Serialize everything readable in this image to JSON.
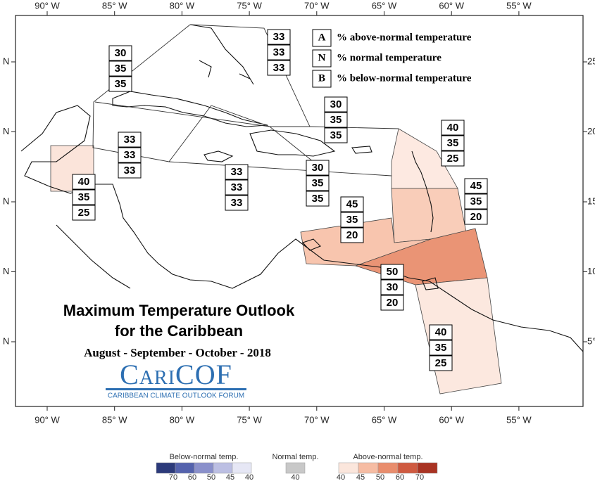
{
  "title_line1": "Maximum Temperature Outlook",
  "title_line2": "for the Caribbean",
  "season": "August - September - October - 2018",
  "logo": "CariCOF",
  "logo_sub": "CARIBBEAN CLIMATE OUTLOOK FORUM",
  "lon_labels": [
    "90° W",
    "85° W",
    "80° W",
    "75° W",
    "70° W",
    "65° W",
    "60° W",
    "55° W"
  ],
  "lat_labels_left": [
    "N",
    "N",
    "N",
    "N",
    "N"
  ],
  "lat_labels_right": [
    "25",
    "20",
    "15",
    "10",
    "5°"
  ],
  "legend": [
    {
      "key": "A",
      "text": "% above-normal temperature"
    },
    {
      "key": "N",
      "text": "% normal temperature"
    },
    {
      "key": "B",
      "text": "% below-normal temperature"
    }
  ],
  "regions": [
    {
      "probs": [
        33,
        33,
        33
      ]
    },
    {
      "probs": [
        30,
        35,
        35
      ]
    },
    {
      "probs": [
        40,
        35,
        25
      ],
      "color": "#fbe4da"
    },
    {
      "probs": [
        33,
        33,
        33
      ]
    },
    {
      "probs": [
        33,
        33,
        33
      ]
    },
    {
      "probs": [
        30,
        35,
        35
      ]
    },
    {
      "probs": [
        30,
        35,
        35
      ]
    },
    {
      "probs": [
        40,
        35,
        25
      ],
      "color": "#fde9e1"
    },
    {
      "probs": [
        45,
        35,
        20
      ],
      "color": "#f9cdb9"
    },
    {
      "probs": [
        45,
        35,
        20
      ],
      "color": "#f8c5ae"
    },
    {
      "probs": [
        50,
        30,
        20
      ],
      "color": "#ea9475"
    },
    {
      "probs": [
        40,
        35,
        25
      ],
      "color": "#fce8df"
    }
  ],
  "colorbar": {
    "below": {
      "label": "Below-normal temp.",
      "ticks": [
        70,
        60,
        50,
        45,
        40
      ],
      "colors": [
        "#2c3a7a",
        "#5462ad",
        "#8a90cb",
        "#bcbfe3",
        "#e6e7f5"
      ]
    },
    "normal": {
      "label": "Normal temp.",
      "ticks": [
        40
      ],
      "colors": [
        "#c8c8c8"
      ]
    },
    "above": {
      "label": "Above-normal temp.",
      "ticks": [
        40,
        45,
        50,
        60,
        70
      ],
      "colors": [
        "#fbe6dc",
        "#f6bca3",
        "#e98d6d",
        "#cf5a40",
        "#a93322"
      ]
    }
  }
}
